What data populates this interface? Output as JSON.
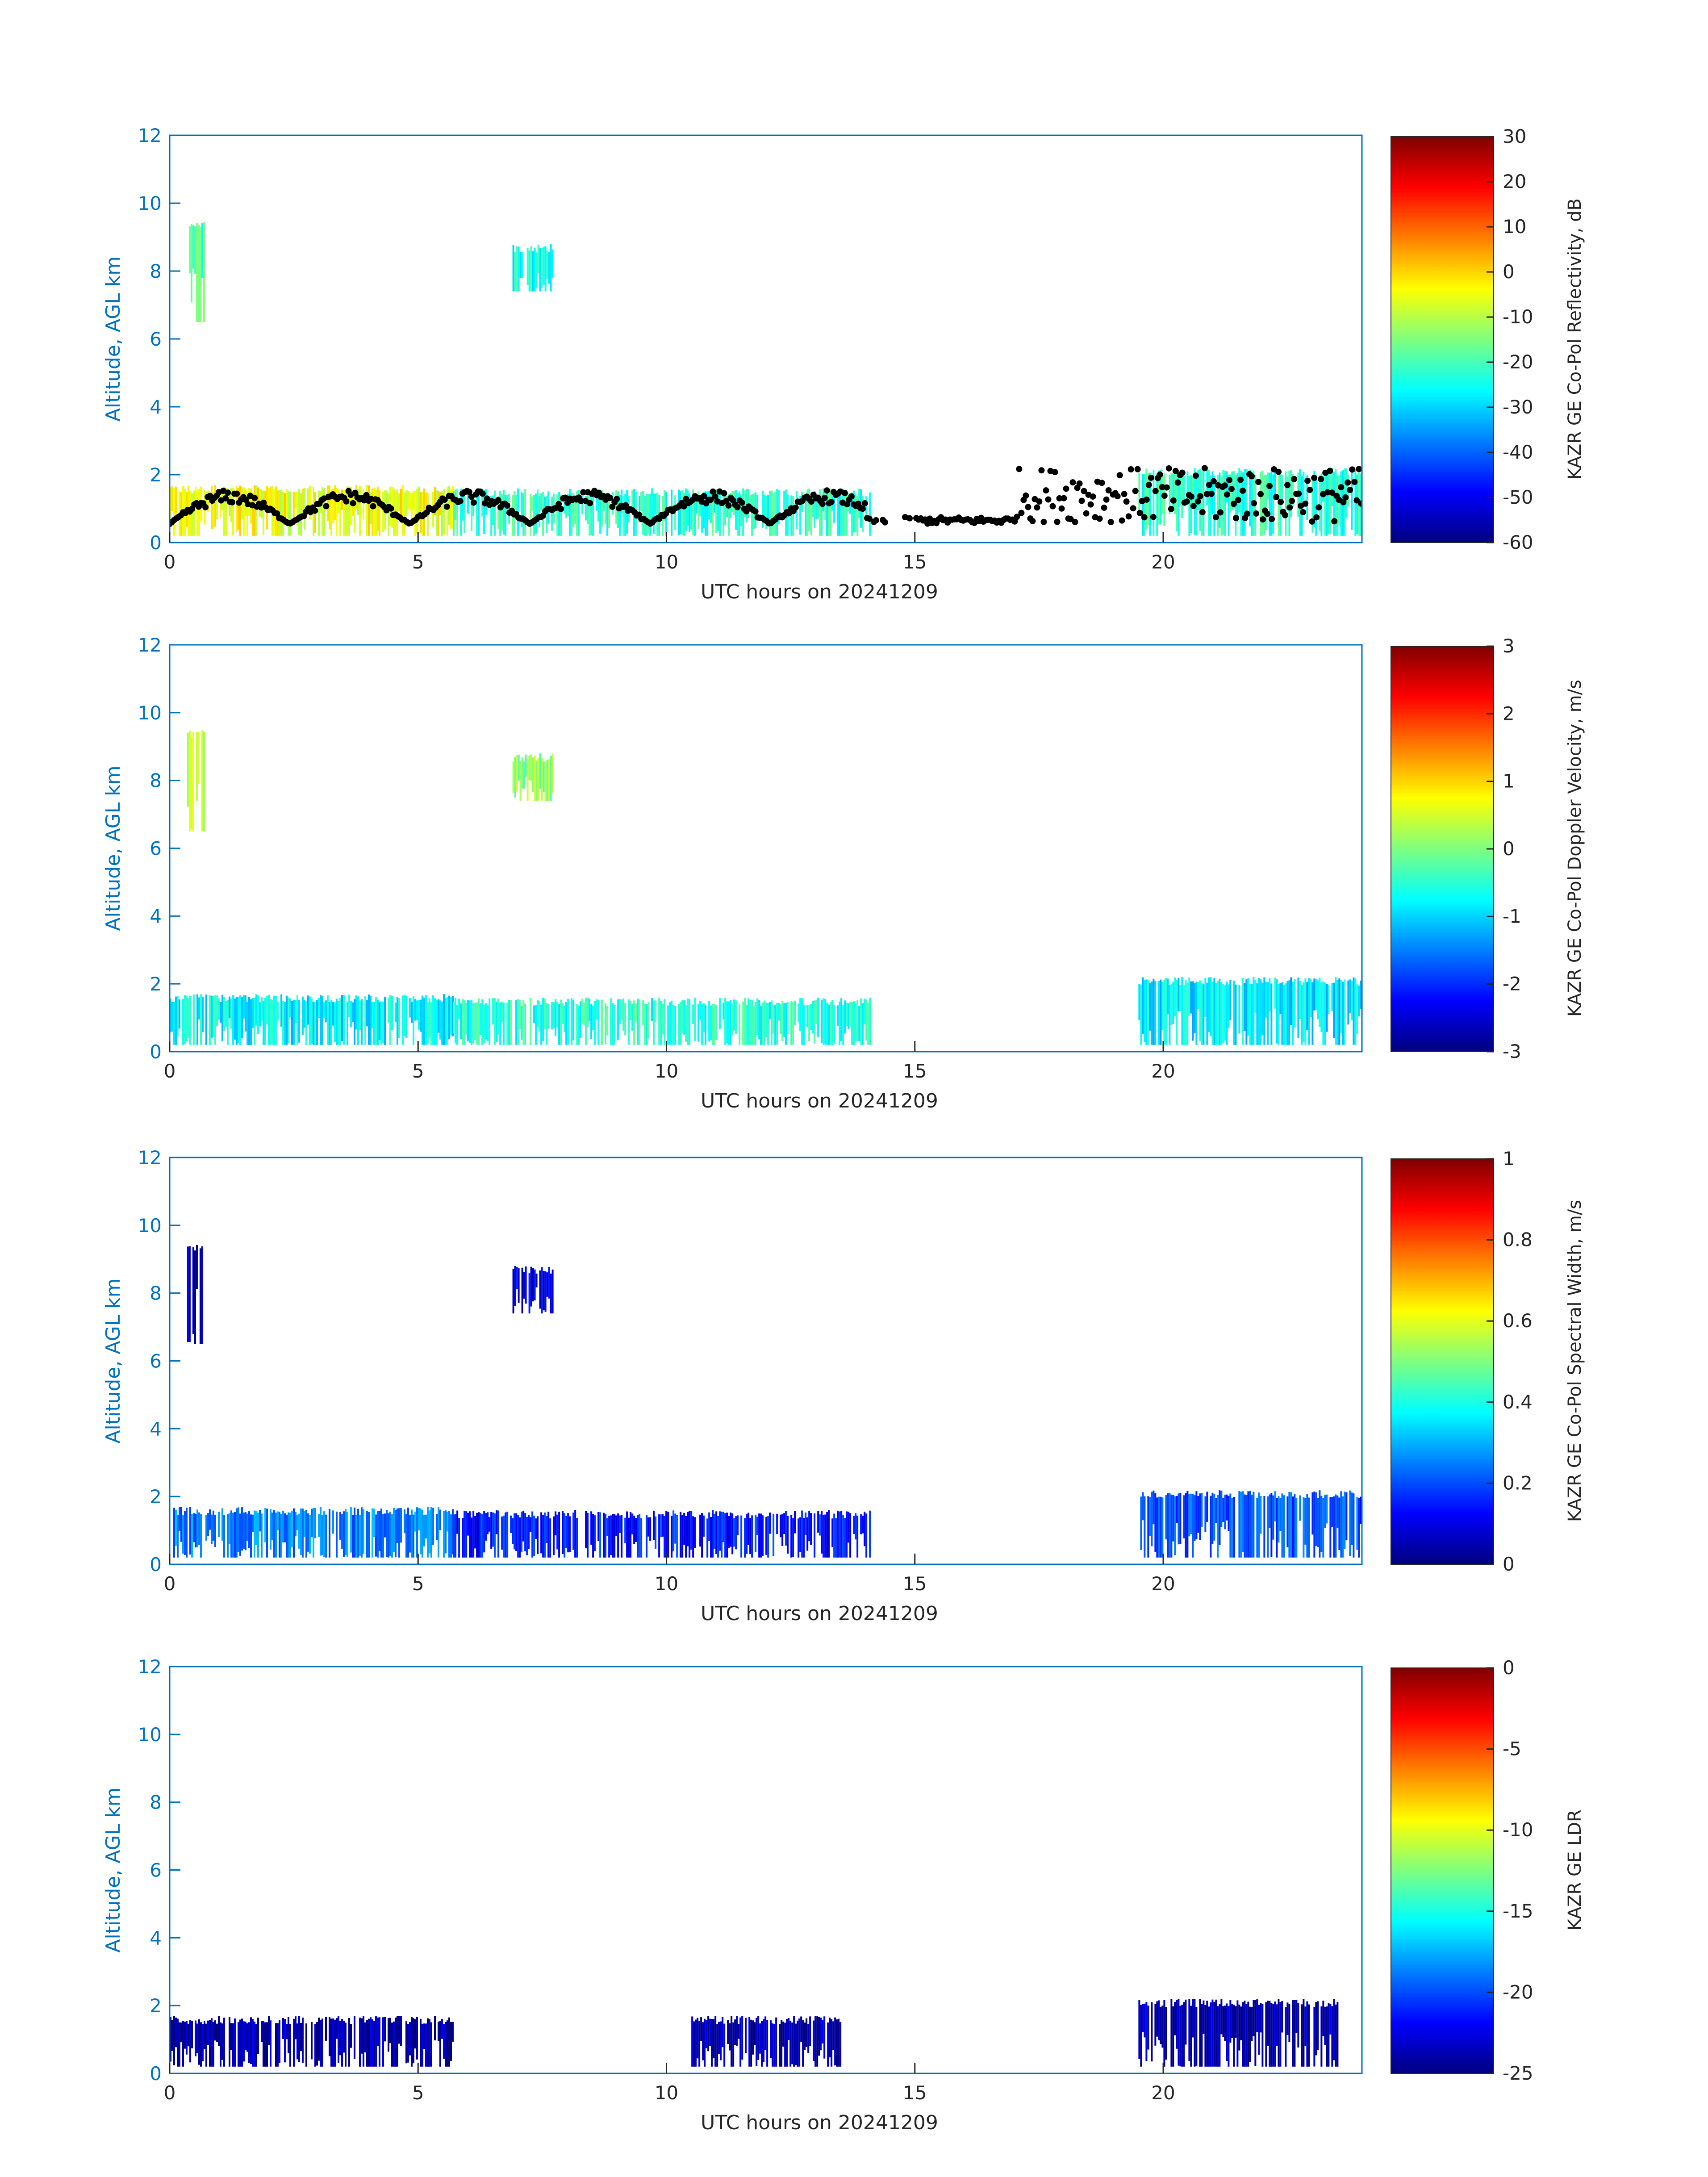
{
  "colors": {
    "axis": "#0072BD",
    "text": "#262626",
    "cloud_base_points": "#000000",
    "colormap": [
      "#00007f",
      "#0000ff",
      "#007fff",
      "#00ffff",
      "#7fff7f",
      "#ffff00",
      "#ff7f00",
      "#ff0000",
      "#7f0000"
    ]
  },
  "chart_data": [
    {
      "type": "heatmap",
      "xlabel": "UTC hours on 20241209",
      "ylabel": "Altitude, AGL km",
      "xlim": [
        0,
        24
      ],
      "ylim": [
        0,
        12
      ],
      "xticks": [
        0,
        5,
        10,
        15,
        20
      ],
      "yticks": [
        0,
        2,
        4,
        6,
        8,
        10,
        12
      ],
      "colorbar": {
        "label": "KAZR GE Co-Pol Reflectivity, dB",
        "range": [
          -60,
          30
        ],
        "ticks": [
          30,
          20,
          10,
          0,
          -10,
          -20,
          -30,
          -40,
          -50,
          -60
        ]
      },
      "overlay": "black cloud-base points",
      "cloud_segments": [
        {
          "x": [
            0.0,
            5.7
          ],
          "y": [
            0.2,
            1.7
          ],
          "value": -5
        },
        {
          "x": [
            5.7,
            14.1
          ],
          "y": [
            0.2,
            1.6
          ],
          "value": -22
        },
        {
          "x": [
            19.5,
            24.0
          ],
          "y": [
            0.2,
            2.2
          ],
          "value": -22
        },
        {
          "x": [
            0.35,
            0.7
          ],
          "y": [
            6.5,
            9.5
          ],
          "value": -20
        },
        {
          "x": [
            6.9,
            7.7
          ],
          "y": [
            7.4,
            8.8
          ],
          "value": -25
        }
      ]
    },
    {
      "type": "heatmap",
      "xlabel": "UTC hours on 20241209",
      "ylabel": "Altitude, AGL km",
      "xlim": [
        0,
        24
      ],
      "ylim": [
        0,
        12
      ],
      "xticks": [
        0,
        5,
        10,
        15,
        20
      ],
      "yticks": [
        0,
        2,
        4,
        6,
        8,
        10,
        12
      ],
      "colorbar": {
        "label": "KAZR GE Co-Pol Doppler Velocity, m/s",
        "range": [
          -3,
          3
        ],
        "ticks": [
          3,
          2,
          1,
          0,
          -1,
          -2,
          -3
        ]
      },
      "cloud_segments": [
        {
          "x": [
            0.0,
            5.7
          ],
          "y": [
            0.2,
            1.7
          ],
          "value": -0.8
        },
        {
          "x": [
            5.7,
            14.1
          ],
          "y": [
            0.2,
            1.6
          ],
          "value": -0.5
        },
        {
          "x": [
            19.5,
            24.0
          ],
          "y": [
            0.2,
            2.2
          ],
          "value": -0.9
        },
        {
          "x": [
            0.35,
            0.7
          ],
          "y": [
            6.5,
            9.5
          ],
          "value": 0.3
        },
        {
          "x": [
            6.9,
            7.7
          ],
          "y": [
            7.4,
            8.8
          ],
          "value": 0.1
        }
      ]
    },
    {
      "type": "heatmap",
      "xlabel": "UTC hours on 20241209",
      "ylabel": "Altitude, AGL km",
      "xlim": [
        0,
        24
      ],
      "ylim": [
        0,
        12
      ],
      "xticks": [
        0,
        5,
        10,
        15,
        20
      ],
      "yticks": [
        0,
        2,
        4,
        6,
        8,
        10,
        12
      ],
      "colorbar": {
        "label": "KAZR GE Co-Pol Spectral Width, m/s",
        "range": [
          0,
          1
        ],
        "ticks": [
          1,
          0.8,
          0.6,
          0.4,
          0.2,
          0
        ]
      },
      "cloud_segments": [
        {
          "x": [
            0.0,
            5.7
          ],
          "y": [
            0.2,
            1.7
          ],
          "value": 0.25
        },
        {
          "x": [
            5.7,
            14.1
          ],
          "y": [
            0.2,
            1.6
          ],
          "value": 0.15
        },
        {
          "x": [
            19.5,
            24.0
          ],
          "y": [
            0.2,
            2.2
          ],
          "value": 0.2
        },
        {
          "x": [
            0.35,
            0.7
          ],
          "y": [
            6.5,
            9.5
          ],
          "value": 0.05
        },
        {
          "x": [
            6.9,
            7.7
          ],
          "y": [
            7.4,
            8.8
          ],
          "value": 0.1
        }
      ]
    },
    {
      "type": "heatmap",
      "xlabel": "UTC hours on 20241209",
      "ylabel": "Altitude, AGL km",
      "xlim": [
        0,
        24
      ],
      "ylim": [
        0,
        12
      ],
      "xticks": [
        0,
        5,
        10,
        15,
        20
      ],
      "yticks": [
        0,
        2,
        4,
        6,
        8,
        10,
        12
      ],
      "colorbar": {
        "label": "KAZR GE LDR",
        "range": [
          -25,
          0
        ],
        "ticks": [
          0,
          -5,
          -10,
          -15,
          -20,
          -25
        ]
      },
      "cloud_segments": [
        {
          "x": [
            0.0,
            5.7
          ],
          "y": [
            0.2,
            1.7
          ],
          "value": -24
        },
        {
          "x": [
            10.5,
            13.5
          ],
          "y": [
            0.2,
            1.7
          ],
          "value": -24
        },
        {
          "x": [
            19.5,
            23.5
          ],
          "y": [
            0.2,
            2.2
          ],
          "value": -24
        }
      ]
    }
  ]
}
